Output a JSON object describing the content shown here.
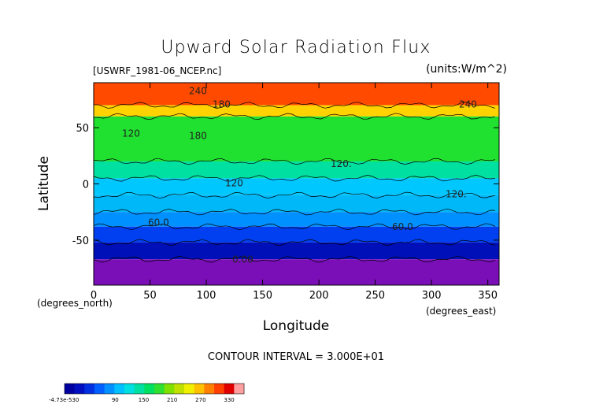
{
  "chart_data": {
    "type": "heatmap",
    "title": "Upward Solar Radiation Flux",
    "subtitle_left": "[USWRF_1981-06_NCEP.nc]",
    "subtitle_right": "(units:W/m^2)",
    "xlabel": "Longitude",
    "ylabel": "Latitude",
    "x_unit_left": "(degrees_north)",
    "x_unit_right": "(degrees_east)",
    "xlim": [
      0,
      360
    ],
    "ylim": [
      -90,
      90
    ],
    "x_ticks": [
      "0",
      "50",
      "100",
      "150",
      "200",
      "250",
      "300",
      "350"
    ],
    "y_ticks": [
      "50",
      "0",
      "-50"
    ],
    "contour_interval_text": "CONTOUR INTERVAL = 3.000E+01",
    "contour_labels": [
      "240",
      "180",
      "120",
      "180",
      "120.",
      "120",
      "120.",
      "240",
      "60.0",
      "60.0",
      "0.00"
    ],
    "colorbar": {
      "min_label": "-4.73e-530",
      "tick_labels": [
        "90",
        "150",
        "210",
        "270",
        "330"
      ],
      "colors": [
        "#0000a0",
        "#0010c0",
        "#0030e0",
        "#0060ff",
        "#0090ff",
        "#00c0ff",
        "#00e0e0",
        "#00e0a0",
        "#00e060",
        "#30e030",
        "#80e000",
        "#c0e000",
        "#f0f000",
        "#ffc000",
        "#ff8000",
        "#ff4000",
        "#e00000",
        "#ffa0a0"
      ]
    },
    "lat_bands": [
      {
        "lat": [
          70,
          90
        ],
        "value": 300,
        "color": "#ff4a00"
      },
      {
        "lat": [
          60,
          70
        ],
        "value": 240,
        "color": "#ffd200"
      },
      {
        "lat": [
          20,
          60
        ],
        "value": 180,
        "color": "#20e030"
      },
      {
        "lat": [
          5,
          20
        ],
        "value": 150,
        "color": "#00e0a0"
      },
      {
        "lat": [
          -10,
          5
        ],
        "value": 120,
        "color": "#00c8ff"
      },
      {
        "lat": [
          -25,
          -10
        ],
        "value": 90,
        "color": "#00b8f8"
      },
      {
        "lat": [
          -38,
          -25
        ],
        "value": 75,
        "color": "#0090ff"
      },
      {
        "lat": [
          -52,
          -38
        ],
        "value": 60,
        "color": "#0040f0"
      },
      {
        "lat": [
          -67,
          -52
        ],
        "value": 30,
        "color": "#0010b8"
      },
      {
        "lat": [
          -90,
          -67
        ],
        "value": 0,
        "color": "#7a0fb8"
      }
    ]
  }
}
